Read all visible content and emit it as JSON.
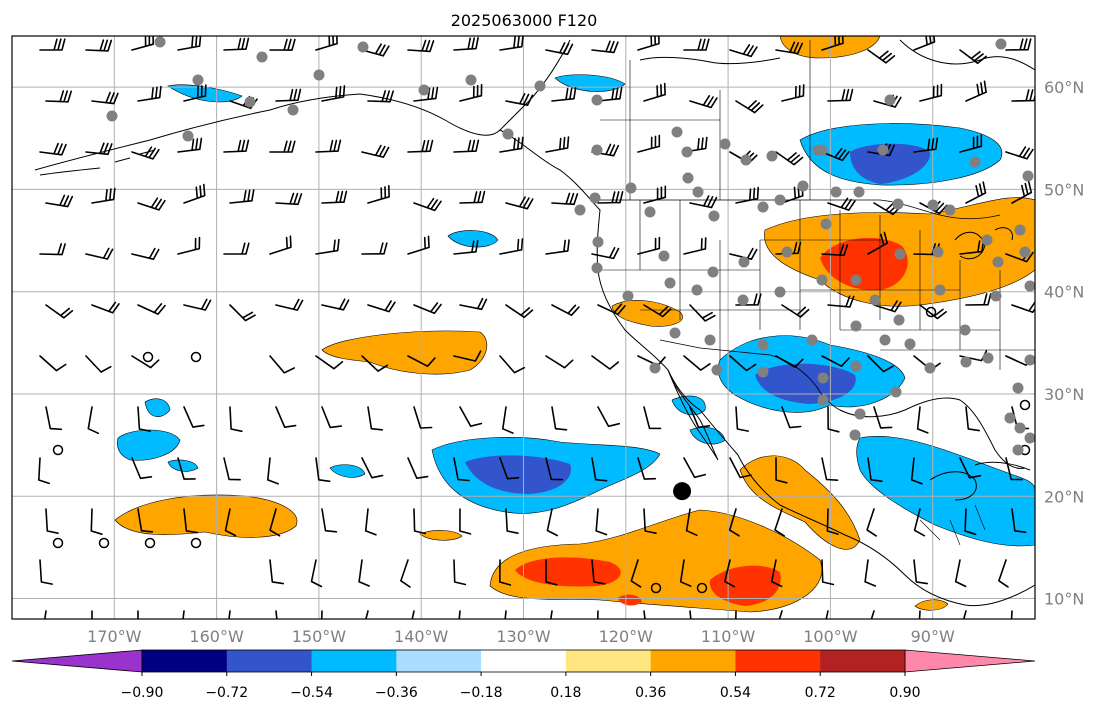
{
  "title": "2025063000 F120",
  "map": {
    "lon_range": [
      -180,
      -80
    ],
    "lat_range": [
      8,
      65
    ],
    "gridlines": true,
    "lat_labels": [
      {
        "lat": 60,
        "label": "60°N"
      },
      {
        "lat": 50,
        "label": "50°N"
      },
      {
        "lat": 40,
        "label": "40°N"
      },
      {
        "lat": 30,
        "label": "30°N"
      },
      {
        "lat": 20,
        "label": "20°N"
      },
      {
        "lat": 10,
        "label": "10°N"
      }
    ],
    "lon_labels": [
      {
        "lon": -170,
        "label": "170°W"
      },
      {
        "lon": -160,
        "label": "160°W"
      },
      {
        "lon": -150,
        "label": "150°W"
      },
      {
        "lon": -140,
        "label": "140°W"
      },
      {
        "lon": -130,
        "label": "130°W"
      },
      {
        "lon": -120,
        "label": "120°W"
      },
      {
        "lon": -110,
        "label": "110°W"
      },
      {
        "lon": -100,
        "label": "100°W"
      },
      {
        "lon": -90,
        "label": "90°W"
      }
    ],
    "marker": {
      "name": "storm-center-marker",
      "lon": -114.5,
      "lat": 20.5
    }
  },
  "colorbar": {
    "levels": [
      -0.9,
      -0.72,
      -0.54,
      -0.36,
      -0.18,
      0.18,
      0.36,
      0.54,
      0.72,
      0.9
    ],
    "tick_labels": [
      "−0.90",
      "−0.72",
      "−0.54",
      "−0.36",
      "−0.18",
      "0.18",
      "0.36",
      "0.54",
      "0.72",
      "0.90"
    ],
    "colors": [
      "#9933cc",
      "#000080",
      "#3355cc",
      "#00bbff",
      "#aaddff",
      "#ffffff",
      "#ffe680",
      "#ffa500",
      "#ff3300",
      "#b22222",
      "#ff88aa"
    ],
    "extend": "both"
  },
  "colors": {
    "gridline": "#b0b0b0",
    "coast": "#000000",
    "barb": "#000000",
    "station_dot": "#808080"
  }
}
